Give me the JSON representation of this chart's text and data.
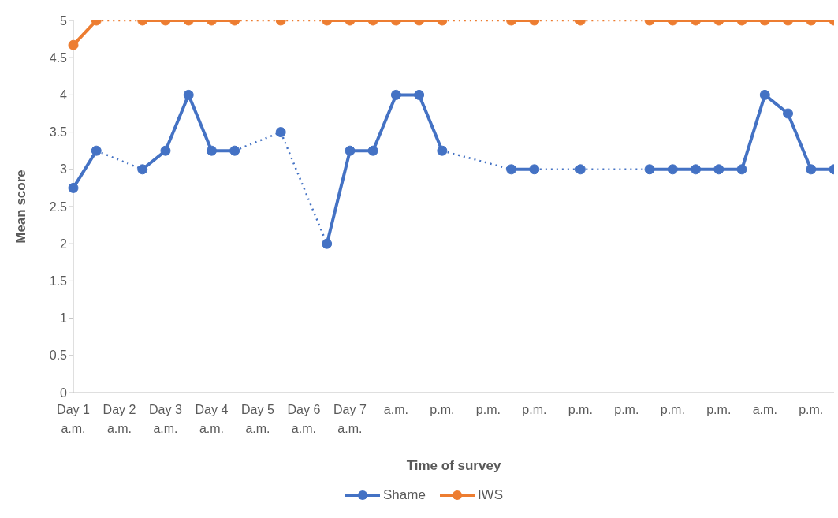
{
  "chart_data": {
    "type": "line",
    "xlabel": "Time of survey",
    "ylabel": "Mean score",
    "categories": [
      "Day 1 a.m.",
      null,
      "Day 2 a.m.",
      null,
      "Day 3 a.m.",
      null,
      "Day 4 a.m.",
      null,
      "Day 5 a.m.",
      null,
      "Day 6 a.m.",
      null,
      "Day 7 a.m.",
      null,
      "a.m.",
      null,
      "p.m.",
      null,
      "p.m.",
      null,
      "p.m.",
      null,
      "p.m.",
      null,
      "p.m.",
      null,
      "p.m.",
      null,
      "p.m.",
      null,
      "a.m.",
      null,
      "p.m.",
      null
    ],
    "series": [
      {
        "name": "Shame",
        "color": "#4472c4",
        "values": [
          2.75,
          3.25,
          null,
          3,
          3.25,
          4,
          3.25,
          3.25,
          null,
          3.5,
          null,
          2,
          3.25,
          3.25,
          4,
          4,
          3.25,
          null,
          null,
          3,
          3,
          null,
          3,
          null,
          null,
          3,
          3,
          3,
          3,
          3,
          4,
          3.75,
          3,
          3
        ]
      },
      {
        "name": "IWS",
        "color": "#ed7d31",
        "values": [
          4.67,
          5,
          null,
          5,
          5,
          5,
          5,
          5,
          null,
          5,
          null,
          5,
          5,
          5,
          5,
          5,
          5,
          null,
          null,
          5,
          5,
          null,
          5,
          null,
          null,
          5,
          5,
          5,
          5,
          5,
          5,
          5,
          5,
          5
        ]
      }
    ],
    "ylim": [
      0,
      5
    ],
    "yticks": [
      0,
      0.5,
      1,
      1.5,
      2,
      2.5,
      3,
      3.5,
      4,
      4.5,
      5
    ],
    "grid": false,
    "legend": "bottom",
    "marker": "circle",
    "line_style": "solid"
  }
}
